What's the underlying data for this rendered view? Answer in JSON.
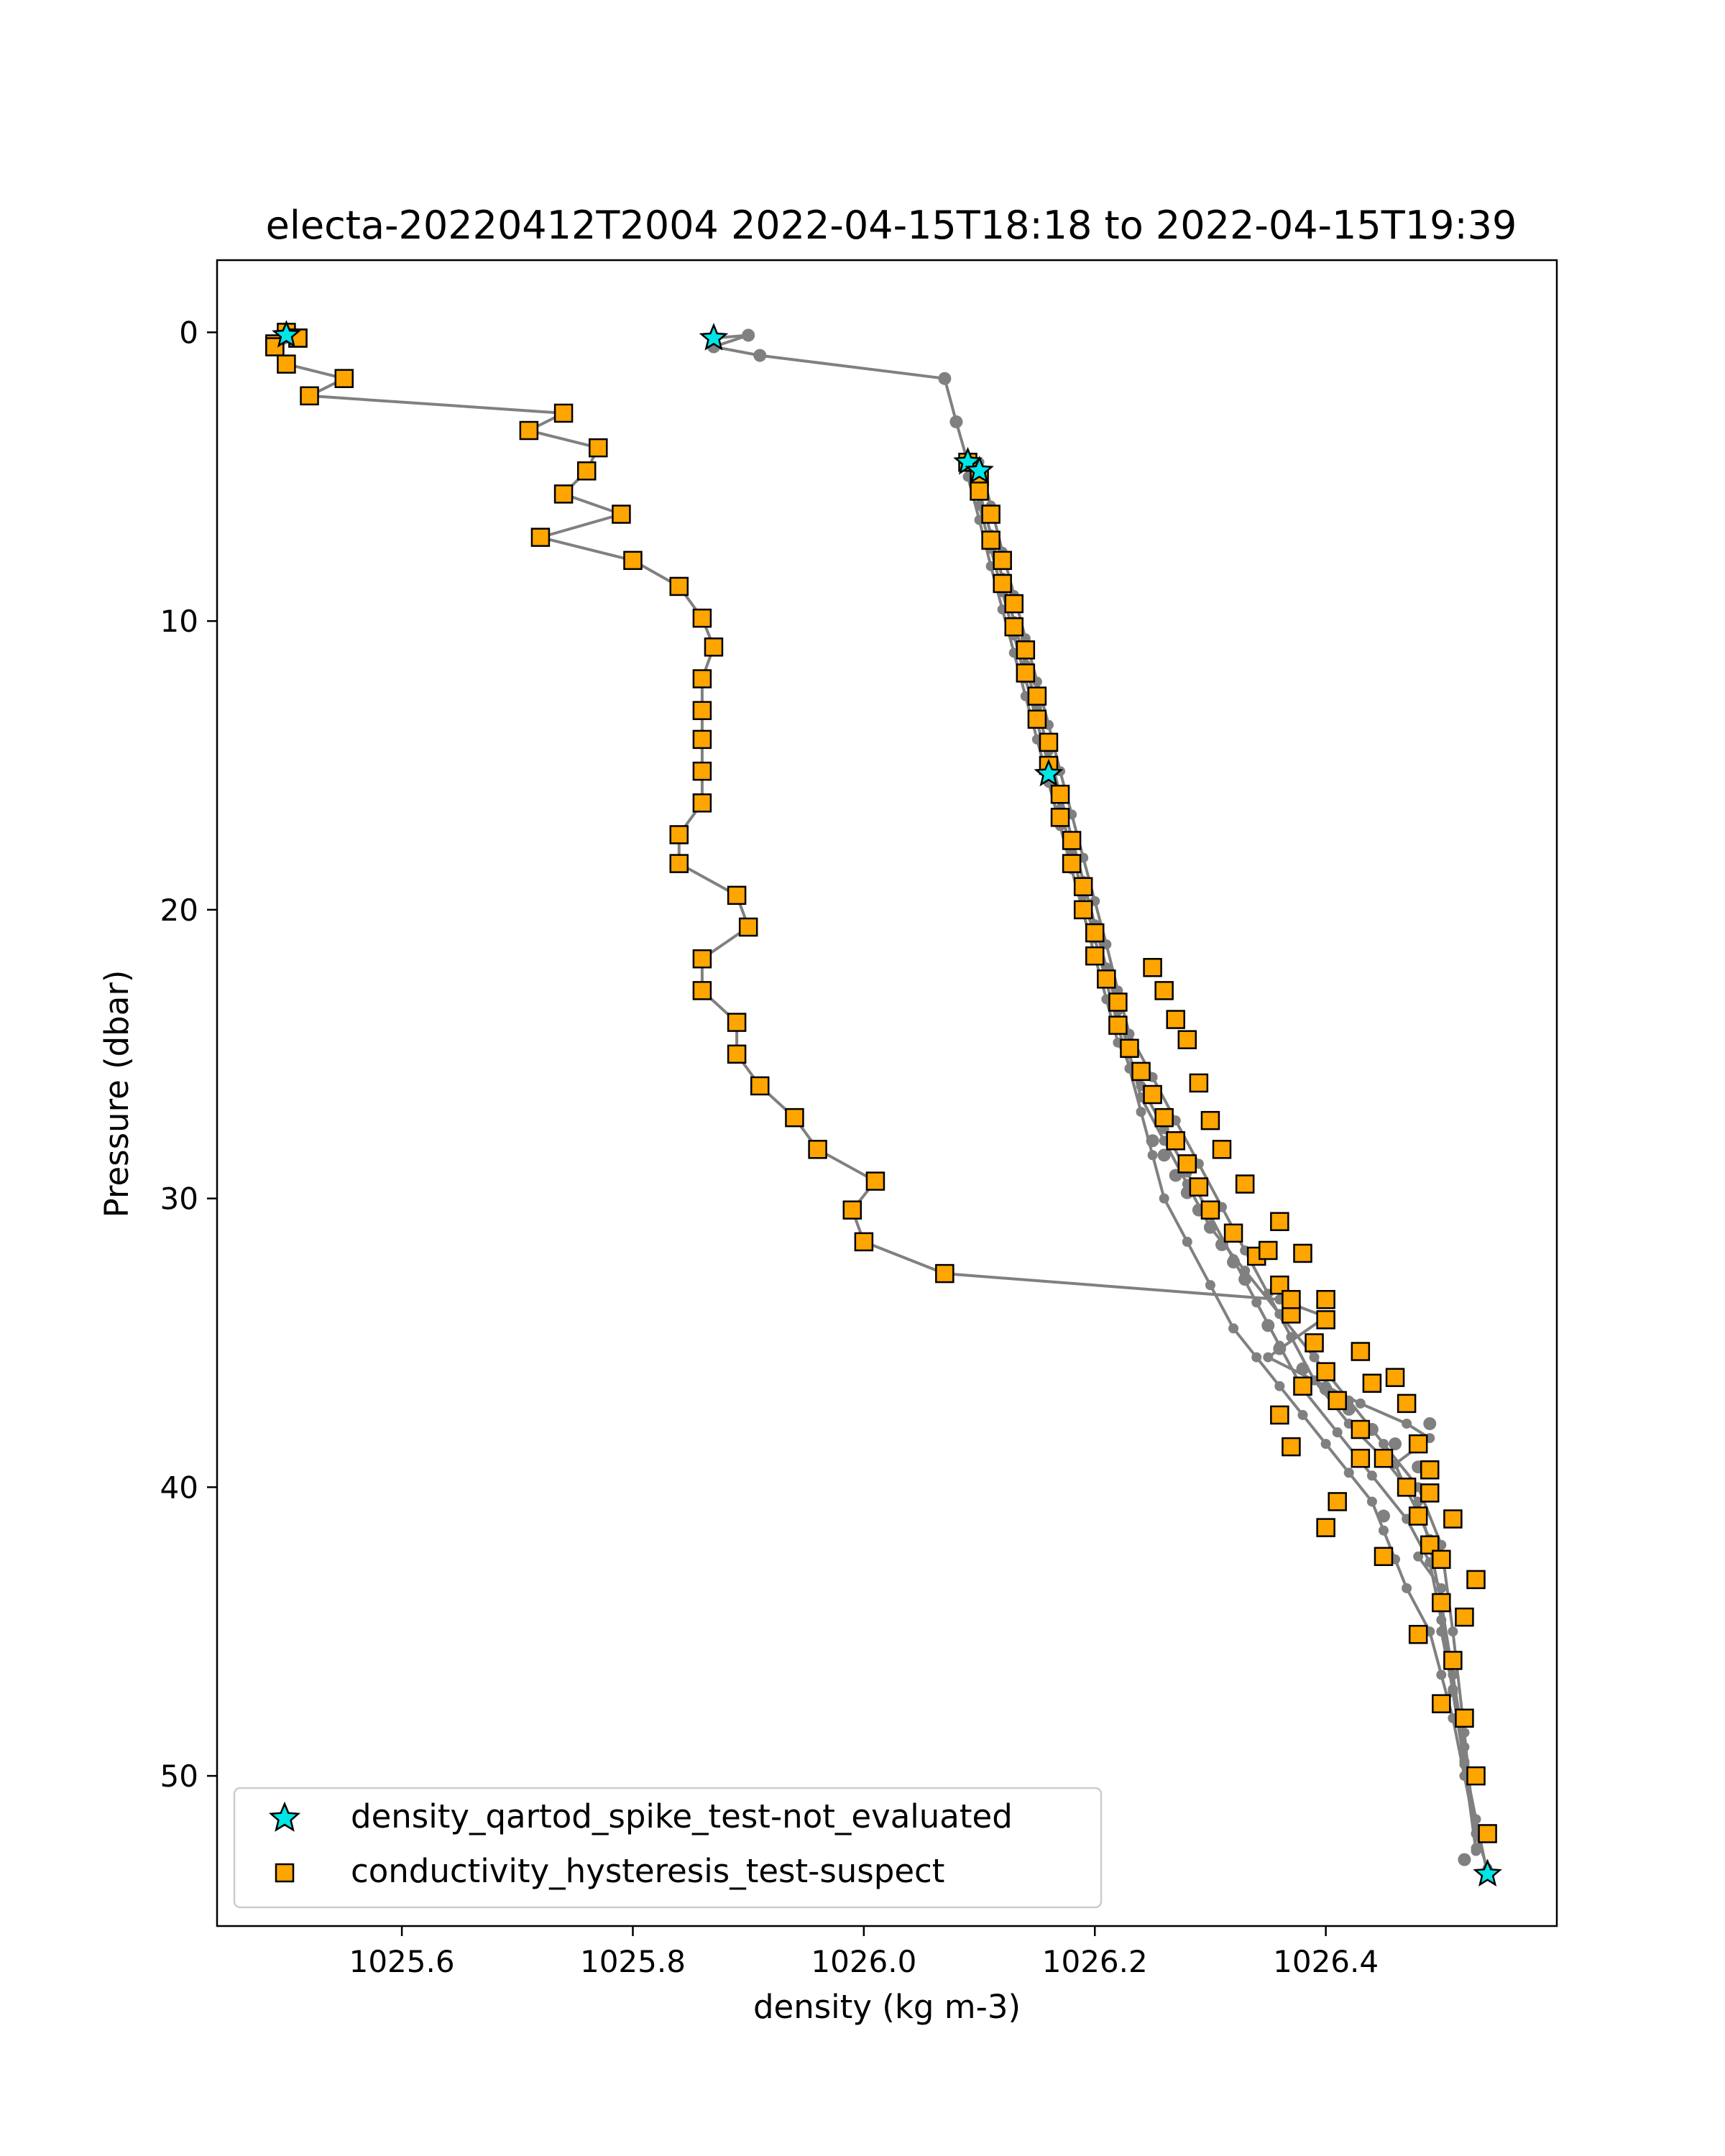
{
  "chart_data": {
    "type": "line",
    "title": "electa-20220412T2004 2022-04-15T18:18 to 2022-04-15T19:39",
    "xlabel": "density (kg m-3)",
    "ylabel": "Pressure (dbar)",
    "xlim": [
      1025.44,
      1026.6
    ],
    "ylim": [
      55.2,
      -2.5
    ],
    "y_inverted": true,
    "grid": false,
    "legend_position": "lower-left",
    "xticks": [
      1025.6,
      1025.8,
      1026.0,
      1026.2,
      1026.4
    ],
    "xtick_labels": [
      "1025.6",
      "1025.8",
      "1026.0",
      "1026.2",
      "1026.4"
    ],
    "yticks": [
      0,
      10,
      20,
      30,
      40,
      50
    ],
    "ytick_labels": [
      "0",
      "10",
      "20",
      "30",
      "40",
      "50"
    ],
    "colors": {
      "line": "#808080",
      "points": "#808080",
      "spike_star": "#00e5e5",
      "hysteresis_square": "#ffa500",
      "marker_edge": "#000000"
    },
    "series": [
      {
        "kind": "profile_line",
        "x": [
          1025.5,
          1025.51,
          1025.49,
          1025.51,
          1025.49,
          1025.5,
          1025.55,
          1025.52,
          1025.74,
          1025.71,
          1025.77,
          1025.76,
          1025.74,
          1025.79,
          1025.72,
          1025.8,
          1025.84,
          1025.86,
          1025.87,
          1025.86,
          1025.86,
          1025.86,
          1025.86,
          1025.86,
          1025.84,
          1025.84,
          1025.89,
          1025.9,
          1025.86,
          1025.86,
          1025.89,
          1025.89,
          1025.91,
          1025.94,
          1025.96,
          1026.01,
          1025.99,
          1026.0,
          1026.07,
          1026.36,
          1026.4,
          1026.35,
          1026.4,
          1026.43,
          1026.47,
          1026.49,
          1026.46,
          1026.47,
          1026.48,
          1026.49,
          1026.48,
          1026.5,
          1026.5,
          1026.51,
          1026.52,
          1026.53,
          1026.54
        ],
        "y": [
          0.0,
          0.2,
          0.4,
          0.2,
          0.5,
          1.1,
          1.6,
          2.2,
          2.8,
          3.4,
          4.0,
          4.8,
          5.6,
          6.3,
          7.1,
          7.9,
          8.8,
          9.9,
          10.9,
          12.0,
          13.1,
          14.1,
          15.2,
          16.3,
          17.4,
          18.4,
          19.5,
          20.6,
          21.7,
          22.8,
          23.9,
          25.0,
          26.1,
          27.2,
          28.3,
          29.4,
          30.4,
          31.5,
          32.6,
          33.5,
          34.1,
          35.5,
          36.5,
          37.1,
          37.8,
          38.3,
          39.2,
          40.1,
          40.9,
          41.8,
          42.4,
          43.5,
          45.0,
          47.0,
          49.5,
          51.5,
          53.4
        ]
      },
      {
        "kind": "profile_line",
        "x": [
          1025.87,
          1025.9,
          1025.87,
          1025.91,
          1026.07,
          1026.08,
          1026.09,
          1026.1,
          1026.11,
          1026.12,
          1026.13,
          1026.14,
          1026.15,
          1026.16,
          1026.17,
          1026.18,
          1026.19,
          1026.2,
          1026.21,
          1026.22,
          1026.23,
          1026.24,
          1026.25,
          1026.26,
          1026.28,
          1026.3,
          1026.32,
          1026.34,
          1026.36,
          1026.38,
          1026.4,
          1026.42,
          1026.44,
          1026.45,
          1026.46,
          1026.47,
          1026.49,
          1026.5,
          1026.51,
          1026.52,
          1026.53,
          1026.54
        ],
        "y": [
          0.2,
          0.1,
          0.5,
          0.8,
          1.6,
          3.1,
          4.5,
          6.0,
          7.5,
          9.0,
          10.5,
          12.0,
          13.5,
          15.0,
          16.5,
          18.0,
          19.5,
          21.0,
          22.5,
          24.0,
          25.5,
          27.0,
          28.5,
          30.0,
          31.5,
          33.0,
          34.5,
          35.5,
          36.5,
          37.5,
          38.5,
          39.5,
          40.5,
          41.5,
          42.5,
          43.5,
          45.0,
          46.5,
          48.0,
          50.0,
          52.0,
          53.2
        ]
      },
      {
        "kind": "profile_line",
        "x": [
          1026.1,
          1026.11,
          1026.12,
          1026.13,
          1026.14,
          1026.15,
          1026.16,
          1026.17,
          1026.18,
          1026.19,
          1026.2,
          1026.21,
          1026.22,
          1026.23,
          1026.25,
          1026.27,
          1026.29,
          1026.31,
          1026.33,
          1026.35,
          1026.37,
          1026.39,
          1026.42,
          1026.45,
          1026.48,
          1026.49,
          1026.5,
          1026.51,
          1026.52,
          1026.53
        ],
        "y": [
          4.5,
          6.0,
          7.6,
          9.1,
          10.6,
          12.1,
          13.6,
          15.2,
          16.7,
          18.2,
          19.7,
          21.2,
          22.8,
          24.3,
          25.8,
          27.3,
          28.8,
          30.3,
          31.8,
          33.3,
          34.8,
          36.3,
          37.8,
          39.0,
          40.5,
          42.0,
          44.0,
          46.5,
          49.0,
          52.0
        ]
      },
      {
        "kind": "profile_line",
        "x": [
          1026.09,
          1026.1,
          1026.11,
          1026.12,
          1026.13,
          1026.14,
          1026.15,
          1026.16,
          1026.17,
          1026.18,
          1026.19,
          1026.2,
          1026.21,
          1026.22,
          1026.24,
          1026.26,
          1026.28,
          1026.3,
          1026.32,
          1026.34,
          1026.36,
          1026.38,
          1026.41,
          1026.44,
          1026.47,
          1026.49,
          1026.5,
          1026.51,
          1026.52,
          1026.53
        ],
        "y": [
          5.0,
          6.5,
          8.1,
          9.6,
          11.1,
          12.6,
          14.1,
          15.6,
          17.1,
          18.6,
          20.1,
          21.6,
          23.1,
          24.6,
          26.1,
          27.6,
          29.1,
          30.6,
          32.1,
          33.6,
          35.1,
          36.6,
          38.1,
          39.6,
          41.1,
          42.6,
          44.6,
          47.1,
          49.6,
          52.6
        ]
      },
      {
        "kind": "profile_line",
        "x": [
          1026.1,
          1026.11,
          1026.12,
          1026.13,
          1026.14,
          1026.15,
          1026.16,
          1026.17,
          1026.18,
          1026.19,
          1026.2,
          1026.21,
          1026.22,
          1026.23,
          1026.24,
          1026.26,
          1026.28,
          1026.3,
          1026.33,
          1026.36,
          1026.39,
          1026.42,
          1026.45,
          1026.48,
          1026.5,
          1026.51,
          1026.52,
          1026.53
        ],
        "y": [
          5.5,
          7.0,
          8.5,
          10.0,
          11.5,
          13.0,
          14.5,
          16.0,
          17.5,
          19.0,
          20.5,
          22.0,
          23.5,
          25.0,
          26.5,
          28.0,
          29.5,
          31.0,
          32.5,
          34.0,
          35.5,
          37.0,
          38.5,
          40.0,
          42.0,
          45.0,
          48.5,
          52.5
        ]
      },
      {
        "kind": "profile_points",
        "x": [
          1025.9,
          1025.91,
          1025.87,
          1026.07,
          1026.08,
          1026.25,
          1026.26,
          1026.27,
          1026.28,
          1026.29,
          1026.3,
          1026.31,
          1026.32,
          1026.33,
          1026.35,
          1026.36,
          1026.38,
          1026.4,
          1026.42,
          1026.44,
          1026.46,
          1026.48,
          1026.49,
          1026.47,
          1026.45,
          1026.52
        ],
        "y": [
          0.1,
          0.8,
          0.5,
          1.6,
          3.1,
          28.0,
          28.5,
          29.2,
          29.8,
          30.4,
          31.0,
          31.6,
          32.2,
          32.8,
          34.4,
          35.2,
          35.9,
          36.6,
          37.3,
          38.0,
          38.5,
          39.3,
          37.8,
          40.0,
          41.0,
          52.9
        ]
      },
      {
        "kind": "hysteresis_squares",
        "name": "conductivity_hysteresis_test-suspect",
        "x": [
          1025.5,
          1025.51,
          1025.49,
          1025.51,
          1025.49,
          1025.5,
          1025.55,
          1025.52,
          1025.74,
          1025.71,
          1025.77,
          1025.76,
          1025.74,
          1025.79,
          1025.72,
          1025.8,
          1025.84,
          1025.86,
          1025.87,
          1025.86,
          1025.86,
          1025.86,
          1025.86,
          1025.86,
          1025.84,
          1025.84,
          1025.89,
          1025.9,
          1025.86,
          1025.86,
          1025.89,
          1025.89,
          1025.91,
          1025.94,
          1025.96,
          1026.01,
          1025.99,
          1026.0,
          1026.07,
          1026.09,
          1026.1,
          1026.1,
          1026.11,
          1026.11,
          1026.12,
          1026.12,
          1026.13,
          1026.13,
          1026.14,
          1026.14,
          1026.15,
          1026.15,
          1026.16,
          1026.16,
          1026.17,
          1026.17,
          1026.18,
          1026.18,
          1026.19,
          1026.19,
          1026.2,
          1026.2,
          1026.21,
          1026.22,
          1026.22,
          1026.23,
          1026.24,
          1026.25,
          1026.26,
          1026.27,
          1026.28,
          1026.29,
          1026.3,
          1026.32,
          1026.34,
          1026.36,
          1026.37,
          1026.39,
          1026.4,
          1026.41,
          1026.43,
          1026.45,
          1026.47,
          1026.48,
          1026.49,
          1026.5,
          1026.51,
          1026.52,
          1026.53,
          1026.54,
          1026.25,
          1026.26,
          1026.28,
          1026.3,
          1026.33,
          1026.36,
          1026.38,
          1026.4,
          1026.43,
          1026.46,
          1026.48,
          1026.49,
          1026.5,
          1026.52,
          1026.27,
          1026.29,
          1026.31,
          1026.35,
          1026.37,
          1026.4,
          1026.44,
          1026.47,
          1026.49,
          1026.51,
          1026.53,
          1026.36,
          1026.38,
          1026.41,
          1026.43,
          1026.4,
          1026.37,
          1026.45,
          1026.48,
          1026.5
        ],
        "y": [
          0.0,
          0.2,
          0.4,
          0.2,
          0.5,
          1.1,
          1.6,
          2.2,
          2.8,
          3.4,
          4.0,
          4.8,
          5.6,
          6.3,
          7.1,
          7.9,
          8.8,
          9.9,
          10.9,
          12.0,
          13.1,
          14.1,
          15.2,
          16.3,
          17.4,
          18.4,
          19.5,
          20.6,
          21.7,
          22.8,
          23.9,
          25.0,
          26.1,
          27.2,
          28.3,
          29.4,
          30.4,
          31.5,
          32.6,
          4.5,
          5.0,
          5.5,
          6.3,
          7.2,
          7.9,
          8.7,
          9.4,
          10.2,
          11.0,
          11.8,
          12.6,
          13.4,
          14.2,
          15.0,
          16.0,
          16.8,
          17.6,
          18.4,
          19.2,
          20.0,
          20.8,
          21.6,
          22.4,
          23.2,
          24.0,
          24.8,
          25.6,
          26.4,
          27.2,
          28.0,
          28.8,
          29.6,
          30.4,
          31.2,
          32.0,
          33.0,
          34.0,
          35.0,
          36.0,
          37.0,
          38.0,
          39.0,
          40.0,
          41.0,
          42.0,
          44.0,
          46.0,
          48.0,
          50.0,
          52.0,
          22.0,
          22.8,
          24.5,
          27.3,
          29.5,
          30.8,
          31.9,
          33.5,
          35.3,
          36.2,
          38.5,
          40.2,
          42.5,
          44.5,
          23.8,
          26.0,
          28.3,
          31.8,
          33.5,
          34.2,
          36.4,
          37.1,
          39.4,
          41.1,
          43.2,
          37.5,
          36.5,
          40.5,
          39.0,
          41.4,
          38.6,
          42.4,
          45.1,
          47.5
        ]
      },
      {
        "kind": "spike_stars",
        "name": "density_qartod_spike_test-not_evaluated",
        "x": [
          1025.5,
          1025.87,
          1026.09,
          1026.1,
          1026.16,
          1026.54
        ],
        "y": [
          0.1,
          0.2,
          4.5,
          4.8,
          15.3,
          53.4
        ]
      }
    ],
    "legend": [
      {
        "label": "density_qartod_spike_test-not_evaluated",
        "marker": "star"
      },
      {
        "label": "conductivity_hysteresis_test-suspect",
        "marker": "square"
      }
    ]
  }
}
